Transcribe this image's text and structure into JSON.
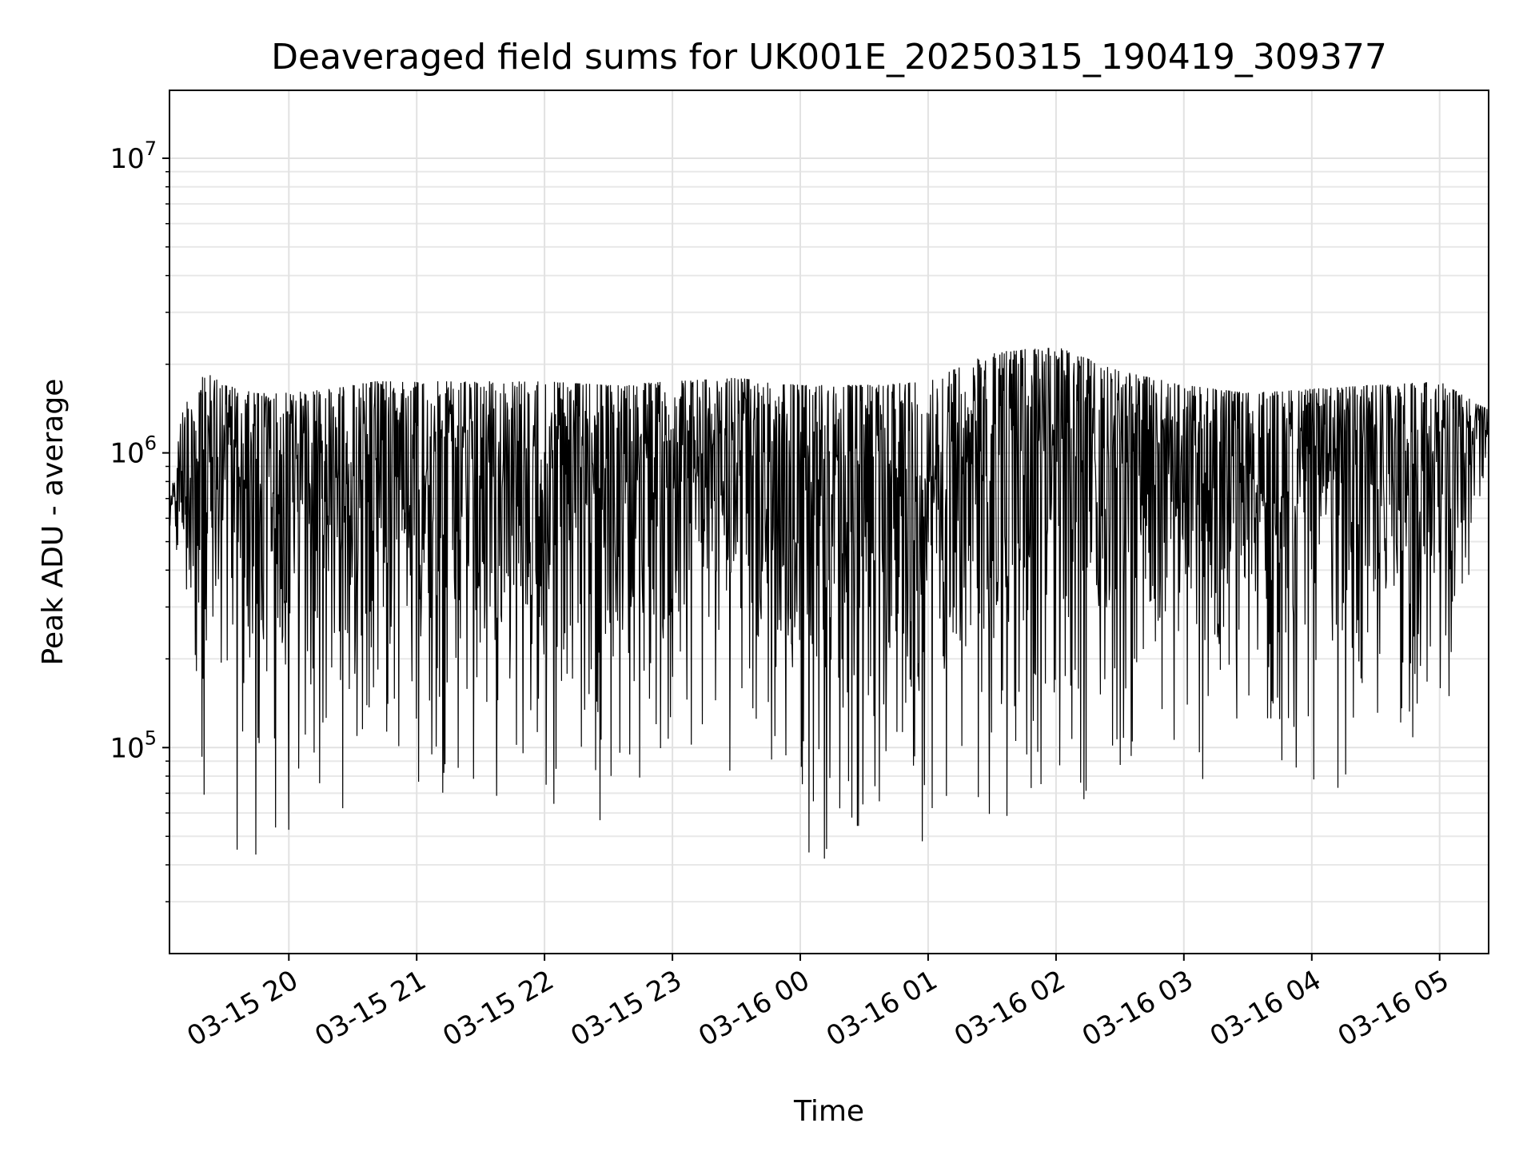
{
  "chart_data": {
    "type": "line",
    "title": "Deaveraged field sums for UK001E_20250315_190419_309377",
    "xlabel": "Time",
    "ylabel": "Peak ADU - average",
    "yscale": "log",
    "ylim": [
      20000,
      17000000
    ],
    "xlim": [
      "2025-03-15 19:04",
      "2025-03-16 05:23"
    ],
    "grid": true,
    "line_color": "#000000",
    "x_ticks": [
      {
        "value": "2025-03-15 20:00",
        "label": "03-15 20"
      },
      {
        "value": "2025-03-15 21:00",
        "label": "03-15 21"
      },
      {
        "value": "2025-03-15 22:00",
        "label": "03-15 22"
      },
      {
        "value": "2025-03-15 23:00",
        "label": "03-15 23"
      },
      {
        "value": "2025-03-16 00:00",
        "label": "03-16 00"
      },
      {
        "value": "2025-03-16 01:00",
        "label": "03-16 01"
      },
      {
        "value": "2025-03-16 02:00",
        "label": "03-16 02"
      },
      {
        "value": "2025-03-16 03:00",
        "label": "03-16 03"
      },
      {
        "value": "2025-03-16 04:00",
        "label": "03-16 04"
      },
      {
        "value": "2025-03-16 05:00",
        "label": "03-16 05"
      }
    ],
    "y_ticks": [
      {
        "value": 100000,
        "base": "10",
        "exp": "5"
      },
      {
        "value": 1000000,
        "base": "10",
        "exp": "6"
      },
      {
        "value": 10000000,
        "base": "10",
        "exp": "7"
      }
    ],
    "envelope": {
      "x": [
        "2025-03-15 19:04",
        "2025-03-15 19:10",
        "2025-03-15 19:20",
        "2025-03-15 19:30",
        "2025-03-15 19:45",
        "2025-03-15 20:00",
        "2025-03-15 20:20",
        "2025-03-15 20:40",
        "2025-03-15 21:00",
        "2025-03-15 21:30",
        "2025-03-15 22:00",
        "2025-03-15 22:30",
        "2025-03-15 23:00",
        "2025-03-15 23:30",
        "2025-03-16 00:00",
        "2025-03-16 00:30",
        "2025-03-16 01:00",
        "2025-03-16 01:30",
        "2025-03-16 02:00",
        "2025-03-16 02:30",
        "2025-03-16 03:00",
        "2025-03-16 03:30",
        "2025-03-16 04:00",
        "2025-03-16 04:30",
        "2025-03-16 05:00",
        "2025-03-16 05:23"
      ],
      "upper": [
        650000,
        1400000,
        1900000,
        1700000,
        1600000,
        1600000,
        1650000,
        1750000,
        1750000,
        1750000,
        1750000,
        1700000,
        1750000,
        1800000,
        1700000,
        1700000,
        1750000,
        2200000,
        2300000,
        1900000,
        1700000,
        1600000,
        1650000,
        1700000,
        1750000,
        1400000
      ],
      "lower": [
        500000,
        200000,
        60000,
        40000,
        35000,
        32000,
        50000,
        70000,
        65000,
        55000,
        50000,
        55000,
        60000,
        80000,
        35000,
        40000,
        45000,
        50000,
        60000,
        65000,
        60000,
        55000,
        60000,
        75000,
        100000,
        500000
      ]
    }
  }
}
